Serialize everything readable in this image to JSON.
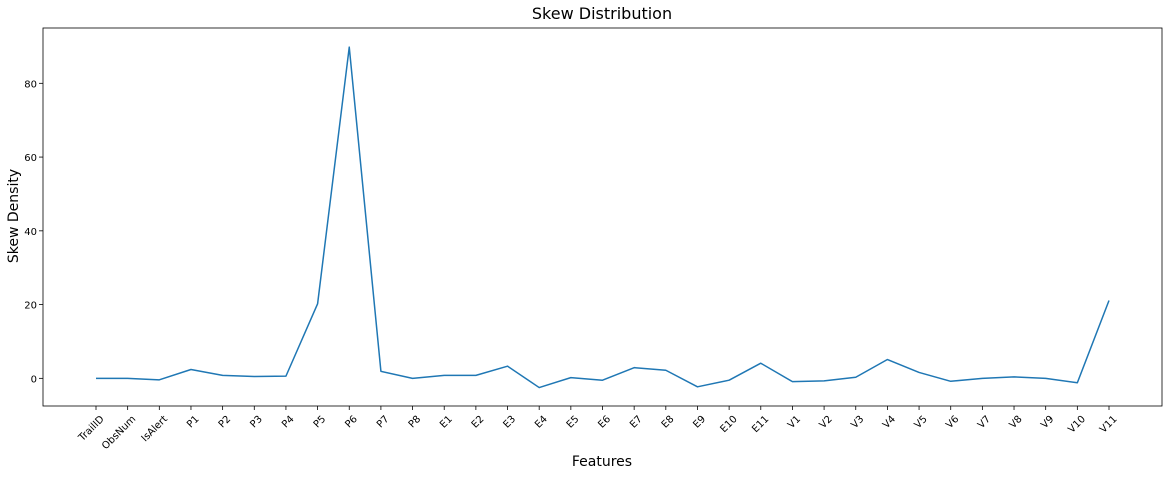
{
  "chart_data": {
    "type": "line",
    "title": "Skew Distribution",
    "xlabel": "Features",
    "ylabel": "Skew Density",
    "categories": [
      "TrailID",
      "ObsNum",
      "IsAlert",
      "P1",
      "P2",
      "P3",
      "P4",
      "P5",
      "P6",
      "P7",
      "P8",
      "E1",
      "E2",
      "E3",
      "E4",
      "E5",
      "E6",
      "E7",
      "E8",
      "E9",
      "E10",
      "E11",
      "V1",
      "V2",
      "V3",
      "V4",
      "V5",
      "V6",
      "V7",
      "V8",
      "V9",
      "V10",
      "V11"
    ],
    "series": [
      {
        "values": [
          0.0,
          0.0,
          -0.4,
          2.4,
          0.8,
          0.5,
          0.6,
          20.2,
          89.8,
          1.9,
          0.0,
          0.8,
          0.8,
          3.3,
          -2.5,
          0.2,
          -0.5,
          2.9,
          2.2,
          -2.3,
          -0.5,
          4.1,
          -0.9,
          -0.7,
          0.3,
          5.1,
          1.6,
          -0.8,
          0.0,
          0.4,
          0.0,
          -1.2,
          21.1
        ],
        "color": "#1f77b4"
      }
    ],
    "yticks": [
      0,
      20,
      40,
      60,
      80
    ],
    "ylim": [
      -7.5,
      95
    ],
    "grid": false,
    "legend": null
  }
}
